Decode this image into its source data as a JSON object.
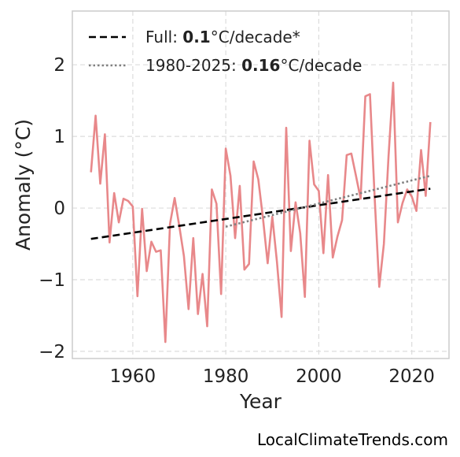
{
  "chart_data": {
    "type": "line",
    "xlabel": "Year",
    "ylabel": "Anomaly (°C)",
    "xlim": [
      1947,
      2028
    ],
    "ylim": [
      -2.1,
      2.75
    ],
    "xticks": [
      1960,
      1980,
      2000,
      2020
    ],
    "xtick_labels": [
      "1960",
      "1980",
      "2000",
      "2020"
    ],
    "yticks": [
      -2,
      -1,
      0,
      1,
      2
    ],
    "ytick_labels": [
      "−2",
      "−1",
      "0",
      "1",
      "2"
    ],
    "grid": true,
    "legend_position": "top-left",
    "series": [
      {
        "role": "anomaly",
        "color": "#e8888a",
        "x": [
          1951,
          1952,
          1953,
          1954,
          1955,
          1956,
          1957,
          1958,
          1959,
          1960,
          1961,
          1962,
          1963,
          1964,
          1965,
          1966,
          1967,
          1968,
          1969,
          1970,
          1971,
          1972,
          1973,
          1974,
          1975,
          1976,
          1977,
          1978,
          1979,
          1980,
          1981,
          1982,
          1983,
          1984,
          1985,
          1986,
          1987,
          1988,
          1989,
          1990,
          1991,
          1992,
          1993,
          1994,
          1995,
          1996,
          1997,
          1998,
          1999,
          2000,
          2001,
          2002,
          2003,
          2004,
          2005,
          2006,
          2007,
          2008,
          2009,
          2010,
          2011,
          2012,
          2013,
          2014,
          2015,
          2016,
          2017,
          2018,
          2019,
          2020,
          2021,
          2022,
          2023,
          2024
        ],
        "y": [
          0.5,
          1.29,
          0.34,
          1.03,
          -0.48,
          0.21,
          -0.2,
          0.13,
          0.1,
          0.02,
          -1.23,
          -0.01,
          -0.88,
          -0.47,
          -0.61,
          -0.59,
          -1.87,
          -0.22,
          0.14,
          -0.25,
          -0.67,
          -1.41,
          -0.42,
          -1.48,
          -0.92,
          -1.65,
          0.26,
          0.06,
          -1.2,
          0.83,
          0.45,
          -0.42,
          0.31,
          -0.86,
          -0.78,
          0.65,
          0.4,
          -0.15,
          -0.77,
          -0.12,
          -0.75,
          -1.52,
          1.12,
          -0.6,
          0.08,
          -0.35,
          -1.24,
          0.94,
          0.33,
          0.24,
          -0.63,
          0.46,
          -0.69,
          -0.4,
          -0.17,
          0.74,
          0.76,
          0.45,
          0.13,
          1.56,
          1.59,
          0.16,
          -1.1,
          -0.5,
          0.72,
          1.75,
          -0.2,
          0.07,
          0.26,
          0.16,
          -0.04,
          0.81,
          0.17,
          1.2
        ]
      },
      {
        "role": "trend-full",
        "style": "dashed",
        "color": "#000000",
        "x": [
          1951,
          2024
        ],
        "y": [
          -0.43,
          0.27
        ]
      },
      {
        "role": "trend-1980-2025",
        "style": "dotted",
        "color": "#808080",
        "x": [
          1980,
          2024
        ],
        "y": [
          -0.26,
          0.45
        ]
      }
    ],
    "legend": [
      {
        "prefix": "Full: ",
        "value": "0.1",
        "suffix": "°C/decade*",
        "style": "dashed",
        "color": "#000000"
      },
      {
        "prefix": "1980-2025: ",
        "value": "0.16",
        "suffix": "°C/decade",
        "style": "dotted",
        "color": "#808080"
      }
    ]
  },
  "watermark": "LocalClimateTrends.com"
}
